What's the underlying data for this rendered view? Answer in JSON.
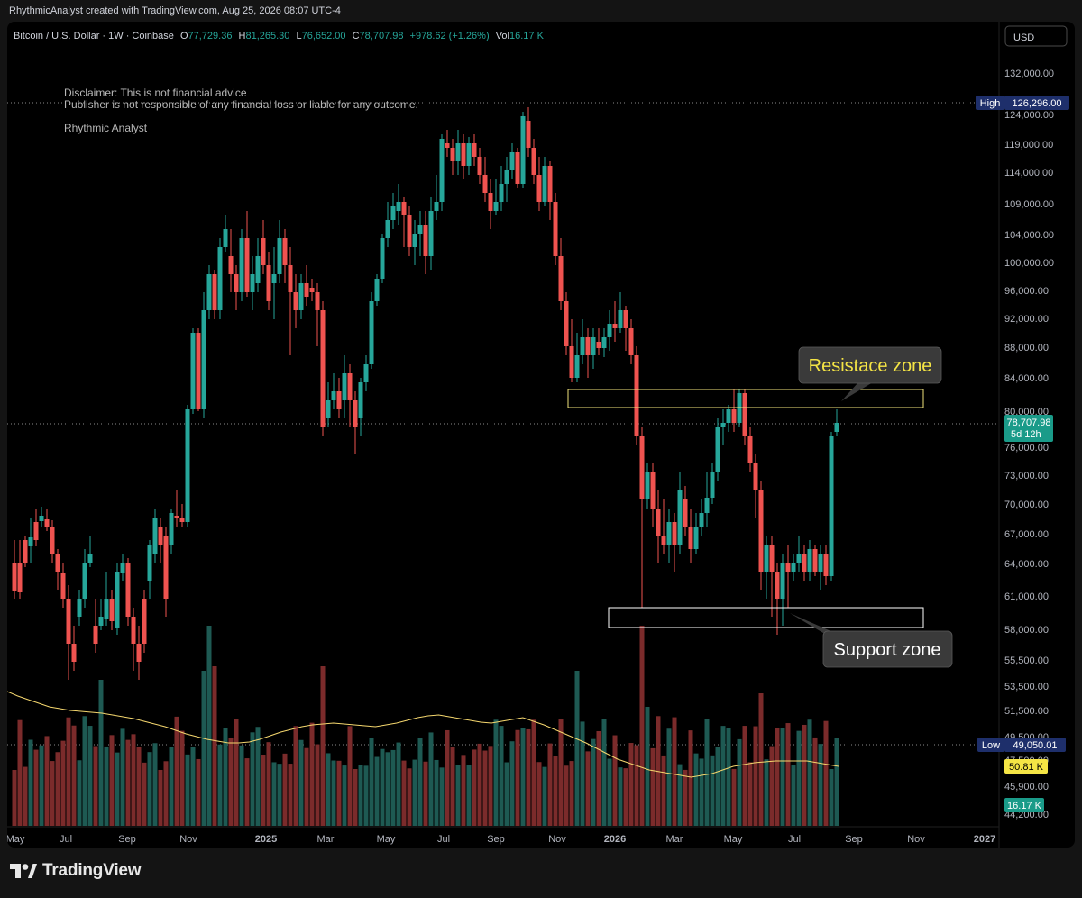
{
  "header": {
    "credit": "RhythmicAnalyst created with TradingView.com, Aug 25, 2026 08:07 UTC-4"
  },
  "legend": {
    "symbol": "Bitcoin / U.S. Dollar · 1W · Coinbase",
    "o_label": "O",
    "o_value": "77,729.36",
    "h_label": "H",
    "h_value": "81,265.30",
    "l_label": "L",
    "l_value": "76,652.00",
    "c_label": "C",
    "c_value": "78,707.98",
    "change": "+978.62 (+1.26%)",
    "vol_label": "Vol",
    "vol_value": "16.17 K"
  },
  "currency": "USD",
  "notes": {
    "disclaimer_1": "Disclaimer: This is not financial advice",
    "disclaimer_2": "Publisher is not responsible of any financial loss or liable for any outcome.",
    "author": "Rhythmic Analyst"
  },
  "badges": {
    "high_label": "High",
    "high_value": "126,296.00",
    "low_label": "Low",
    "low_value": "49,050.01",
    "price_value": "78,707.98",
    "countdown": "5d 12h",
    "ma_value": "50.81 K",
    "vol_value": "16.17 K"
  },
  "annotations": {
    "resistance": "Resistace zone",
    "support": "Support zone"
  },
  "footer": {
    "brand": "TradingView"
  },
  "colors": {
    "up": "#26a69a",
    "down": "#ef5350",
    "vol_up": "#1e5a53",
    "vol_down": "#7b2b2b",
    "ma": "#f5d76e",
    "badge_blue": "#1e2f6b",
    "badge_teal": "#1a9b89",
    "badge_yellow": "#f5e545"
  },
  "chart_data": {
    "type": "candlestick",
    "symbol": "Bitcoin / U.S. Dollar",
    "interval": "1W",
    "yaxis_ticks": [
      "132,000.00",
      "124,000.00",
      "119,000.00",
      "114,000.00",
      "109,000.00",
      "104,000.00",
      "100,000.00",
      "96,000.00",
      "92,000.00",
      "88,000.00",
      "84,000.00",
      "80,000.00",
      "76,000.00",
      "73,000.00",
      "70,000.00",
      "67,000.00",
      "64,000.00",
      "61,000.00",
      "58,000.00",
      "55,500.00",
      "53,500.00",
      "51,500.00",
      "49,500.00",
      "47,500.00",
      "45,900.00",
      "44,200.00"
    ],
    "xaxis_ticks": [
      "May",
      "Jul",
      "Sep",
      "Nov",
      "2025",
      "Mar",
      "May",
      "Jul",
      "Sep",
      "Nov",
      "2026",
      "Mar",
      "May",
      "Jul",
      "Sep",
      "Nov",
      "2027"
    ],
    "high": 126296.0,
    "low": 49050.01,
    "last_close": 78707.98,
    "zones": [
      {
        "name": "Resistace zone",
        "low": 80400,
        "high": 82500
      },
      {
        "name": "Support zone",
        "low": 58000,
        "high": 59900
      }
    ],
    "volume_last": "16.17 K",
    "volume_ma_last": "50.81 K"
  }
}
